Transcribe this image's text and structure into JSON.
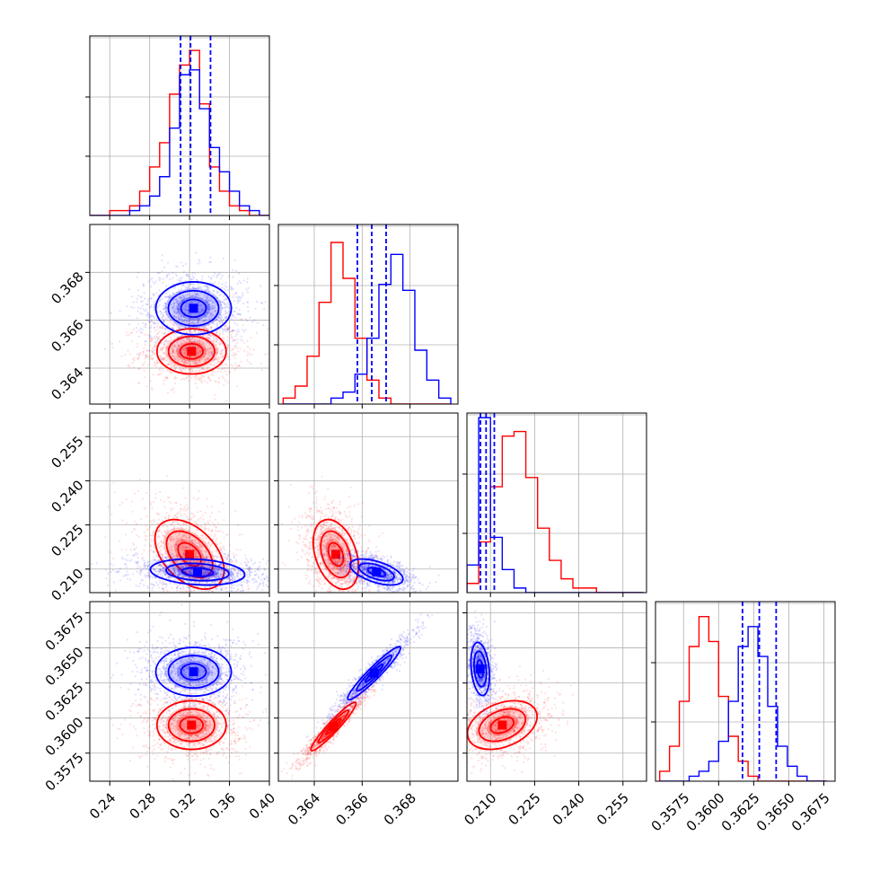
{
  "chart_data": {
    "type": "corner",
    "parameters": 4,
    "grid": true,
    "colors": {
      "sample_a": "#ff0000",
      "sample_b": "#0000ff"
    },
    "axes": [
      {
        "range": [
          0.22,
          0.4
        ],
        "ticks": [
          0.24,
          0.28,
          0.32,
          0.36,
          0.4
        ],
        "tick_labels": [
          "0.24",
          "0.28",
          "0.32",
          "0.36",
          "0.40"
        ]
      },
      {
        "range": [
          0.3625,
          0.37
        ],
        "ticks": [
          0.364,
          0.366,
          0.368
        ],
        "tick_labels": [
          "0.364",
          "0.366",
          "0.368"
        ]
      },
      {
        "range": [
          0.202,
          0.263
        ],
        "ticks": [
          0.21,
          0.225,
          0.24,
          0.255
        ],
        "tick_labels": [
          "0.210",
          "0.225",
          "0.240",
          "0.255"
        ]
      },
      {
        "range": [
          0.3555,
          0.3683
        ],
        "ticks": [
          0.3575,
          0.36,
          0.3625,
          0.365,
          0.3675
        ],
        "tick_labels": [
          "0.3575",
          "0.3600",
          "0.3625",
          "0.3650",
          "0.3675"
        ]
      }
    ],
    "marginal_histograms": [
      {
        "param": 0,
        "ymax": 0.37,
        "red": {
          "bins": [
            0.22,
            0.23,
            0.24,
            0.25,
            0.26,
            0.27,
            0.28,
            0.29,
            0.3,
            0.31,
            0.32,
            0.33,
            0.34,
            0.35,
            0.36,
            0.37,
            0.38,
            0.39,
            0.4
          ],
          "counts": [
            0.0,
            0.0,
            0.01,
            0.01,
            0.02,
            0.05,
            0.1,
            0.15,
            0.25,
            0.31,
            0.34,
            0.23,
            0.1,
            0.05,
            0.02,
            0.01,
            0.0,
            0.0
          ]
        },
        "blue": {
          "bins": [
            0.22,
            0.23,
            0.24,
            0.25,
            0.26,
            0.27,
            0.28,
            0.29,
            0.3,
            0.31,
            0.32,
            0.33,
            0.34,
            0.35,
            0.36,
            0.37,
            0.38,
            0.39,
            0.4
          ],
          "counts": [
            0.0,
            0.0,
            0.0,
            0.0,
            0.01,
            0.02,
            0.04,
            0.08,
            0.18,
            0.29,
            0.3,
            0.22,
            0.14,
            0.09,
            0.05,
            0.02,
            0.01,
            0.0
          ]
        },
        "quantile_lines": [
          0.311,
          0.321,
          0.341
        ]
      },
      {
        "param": 1,
        "ymax": 0.3,
        "red": {
          "bins": [
            0.3627,
            0.3632,
            0.3637,
            0.3642,
            0.3647,
            0.3652,
            0.3657,
            0.3662,
            0.3667,
            0.3672,
            0.3677,
            0.3682,
            0.3687,
            0.3692,
            0.3697
          ],
          "counts": [
            0.01,
            0.03,
            0.08,
            0.17,
            0.27,
            0.21,
            0.11,
            0.04,
            0.01,
            0.0,
            0.0,
            0.0,
            0.0,
            0.0
          ]
        },
        "blue": {
          "bins": [
            0.3627,
            0.3632,
            0.3637,
            0.3642,
            0.3647,
            0.3652,
            0.3657,
            0.3662,
            0.3667,
            0.3672,
            0.3677,
            0.3682,
            0.3687,
            0.3692,
            0.3697
          ],
          "counts": [
            0.0,
            0.0,
            0.0,
            0.0,
            0.01,
            0.02,
            0.05,
            0.11,
            0.2,
            0.25,
            0.19,
            0.09,
            0.04,
            0.01,
            0.0
          ]
        },
        "quantile_lines": [
          0.3658,
          0.3664,
          0.367
        ]
      },
      {
        "param": 2,
        "ymax": 0.39,
        "red": {
          "bins": [
            0.202,
            0.206,
            0.21,
            0.214,
            0.218,
            0.222,
            0.226,
            0.23,
            0.234,
            0.238,
            0.242,
            0.246,
            0.25,
            0.254,
            0.258,
            0.262
          ],
          "counts": [
            0.02,
            0.11,
            0.23,
            0.34,
            0.35,
            0.25,
            0.14,
            0.07,
            0.03,
            0.01,
            0.01,
            0.0,
            0.0,
            0.0,
            0.0
          ]
        },
        "blue": {
          "bins": [
            0.202,
            0.206,
            0.21,
            0.214,
            0.218,
            0.222,
            0.226,
            0.23,
            0.234,
            0.238,
            0.242,
            0.246,
            0.25,
            0.254,
            0.258,
            0.262
          ],
          "counts": [
            0.06,
            0.38,
            0.12,
            0.05,
            0.01,
            0.0,
            0.0,
            0.0,
            0.0,
            0.0,
            0.0,
            0.0,
            0.0,
            0.0,
            0.0
          ]
        },
        "quantile_lines": [
          0.2066,
          0.2085,
          0.2113
        ]
      },
      {
        "param": 3,
        "ymax": 0.36,
        "red": {
          "bins": [
            0.3558,
            0.3565,
            0.3572,
            0.3579,
            0.3586,
            0.3593,
            0.36,
            0.3607,
            0.3614,
            0.3621,
            0.3628,
            0.3635,
            0.3642,
            0.3649,
            0.3656,
            0.3663,
            0.367,
            0.3677
          ],
          "counts": [
            0.02,
            0.07,
            0.16,
            0.27,
            0.33,
            0.28,
            0.17,
            0.09,
            0.04,
            0.01,
            0.0,
            0.0,
            0.0,
            0.0,
            0.0,
            0.0,
            0.0
          ]
        },
        "blue": {
          "bins": [
            0.3558,
            0.3565,
            0.3572,
            0.3579,
            0.3586,
            0.3593,
            0.36,
            0.3607,
            0.3614,
            0.3621,
            0.3628,
            0.3635,
            0.3642,
            0.3649,
            0.3656,
            0.3663,
            0.367,
            0.3677
          ],
          "counts": [
            0.0,
            0.0,
            0.0,
            0.01,
            0.02,
            0.04,
            0.08,
            0.16,
            0.27,
            0.31,
            0.25,
            0.15,
            0.07,
            0.03,
            0.01,
            0.0,
            0.0
          ]
        },
        "quantile_lines": [
          0.3617,
          0.3629,
          0.3641
        ]
      }
    ],
    "joint_distributions": [
      {
        "x": 0,
        "y": 1,
        "red": {
          "mean": [
            0.322,
            0.3647
          ],
          "sd": [
            0.022,
            0.0006
          ],
          "rho": 0.0
        },
        "blue": {
          "mean": [
            0.324,
            0.3665
          ],
          "sd": [
            0.024,
            0.0007
          ],
          "rho": 0.0
        }
      },
      {
        "x": 0,
        "y": 2,
        "red": {
          "mean": [
            0.32,
            0.215
          ],
          "sd": [
            0.022,
            0.0075
          ],
          "rho": -0.45
        },
        "blue": {
          "mean": [
            0.328,
            0.209
          ],
          "sd": [
            0.03,
            0.0028
          ],
          "rho": -0.2
        }
      },
      {
        "x": 0,
        "y": 3,
        "red": {
          "mean": [
            0.322,
            0.3595
          ],
          "sd": [
            0.022,
            0.0011
          ],
          "rho": 0.0
        },
        "blue": {
          "mean": [
            0.324,
            0.3633
          ],
          "sd": [
            0.024,
            0.0011
          ],
          "rho": 0.0
        }
      },
      {
        "x": 1,
        "y": 2,
        "red": {
          "mean": [
            0.3649,
            0.215
          ],
          "sd": [
            0.0006,
            0.0075
          ],
          "rho": -0.35
        },
        "blue": {
          "mean": [
            0.3666,
            0.209
          ],
          "sd": [
            0.0007,
            0.0028
          ],
          "rho": -0.55
        }
      },
      {
        "x": 1,
        "y": 3,
        "red": {
          "mean": [
            0.3648,
            0.3594
          ],
          "sd": [
            0.0006,
            0.0011
          ],
          "rho": 0.95
        },
        "blue": {
          "mean": [
            0.3665,
            0.3632
          ],
          "sd": [
            0.0007,
            0.0012
          ],
          "rho": 0.95
        }
      },
      {
        "x": 2,
        "y": 3,
        "red": {
          "mean": [
            0.214,
            0.3595
          ],
          "sd": [
            0.0075,
            0.0011
          ],
          "rho": 0.35
        },
        "blue": {
          "mean": [
            0.2065,
            0.3635
          ],
          "sd": [
            0.002,
            0.0012
          ],
          "rho": -0.25
        }
      }
    ],
    "contour_levels": [
      0.5,
      1.0,
      1.5
    ]
  }
}
